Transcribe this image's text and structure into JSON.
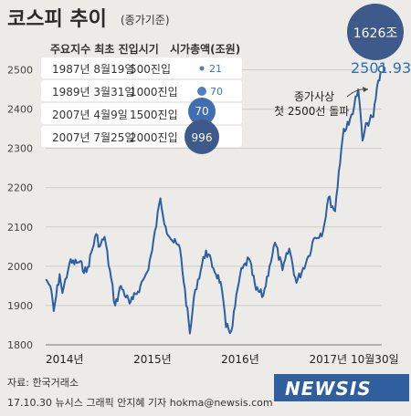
{
  "title": "코스피 추이",
  "subtitle": "(종가기준)",
  "source": "자료: 한국거래소",
  "credit": "17.10.30 뉴시스 그래픽 안지혜 기자 hokma@newsis.com",
  "logo_text": "NEWSIS",
  "colors": {
    "line": "#2c5fa3",
    "bubble_light": "#4f80bf",
    "bubble_dark": "#3d5a8a",
    "accent": "#2d6fb3"
  },
  "top_badge": "1626조",
  "annotation": [
    "종가사상",
    "첫 2500선 돌파"
  ],
  "last_value_label": "2501.93",
  "table": {
    "headers": [
      "주요지수 최초 진입시기",
      "시가총액(조원)"
    ],
    "rows": [
      {
        "date": "1987년 8월19일",
        "level": "500진입",
        "cap": "21"
      },
      {
        "date": "1989년 3월31일",
        "level": "1000진입",
        "cap": "70"
      },
      {
        "date": "2007년 4월9일",
        "level": "1500진입",
        "cap": "70"
      },
      {
        "date": "2007년 7월25일",
        "level": "2000진입",
        "cap": "996"
      }
    ]
  },
  "chart_data": {
    "type": "line",
    "title": "코스피 추이",
    "subtitle": "(종가기준)",
    "ylim": [
      1800,
      2550
    ],
    "y_ticks": [
      1800,
      1900,
      2000,
      2100,
      2200,
      2300,
      2400,
      2500
    ],
    "x_tick_labels": [
      "2014년",
      "2015년",
      "2016년",
      "2017년",
      "10월30일"
    ],
    "x_range": [
      "2014-01-01",
      "2017-10-30"
    ],
    "grid": true,
    "series": [
      {
        "values": [
          [
            "2014-01-02",
            1967
          ],
          [
            "2014-01-20",
            1950
          ],
          [
            "2014-02-04",
            1886
          ],
          [
            "2014-02-28",
            1980
          ],
          [
            "2014-03-12",
            1932
          ],
          [
            "2014-04-10",
            2008
          ],
          [
            "2014-05-20",
            2010
          ],
          [
            "2014-06-20",
            1985
          ],
          [
            "2014-07-30",
            2082
          ],
          [
            "2014-08-14",
            2050
          ],
          [
            "2014-09-03",
            2075
          ],
          [
            "2014-10-17",
            1900
          ],
          [
            "2014-11-10",
            1950
          ],
          [
            "2014-12-16",
            1905
          ],
          [
            "2014-12-30",
            1916
          ],
          [
            "2015-01-30",
            1950
          ],
          [
            "2015-02-27",
            1985
          ],
          [
            "2015-03-20",
            2040
          ],
          [
            "2015-04-23",
            2173
          ],
          [
            "2015-05-15",
            2100
          ],
          [
            "2015-06-12",
            2065
          ],
          [
            "2015-07-14",
            2045
          ],
          [
            "2015-08-24",
            1829
          ],
          [
            "2015-09-15",
            1940
          ],
          [
            "2015-10-30",
            2040
          ],
          [
            "2015-11-30",
            1995
          ],
          [
            "2015-12-30",
            1960
          ],
          [
            "2016-01-21",
            1845
          ],
          [
            "2016-02-12",
            1835
          ],
          [
            "2016-03-20",
            1980
          ],
          [
            "2016-04-25",
            2020
          ],
          [
            "2016-05-25",
            1940
          ],
          [
            "2016-06-24",
            1925
          ],
          [
            "2016-07-20",
            2000
          ],
          [
            "2016-08-12",
            2060
          ],
          [
            "2016-09-12",
            1990
          ],
          [
            "2016-10-10",
            2045
          ],
          [
            "2016-11-09",
            1958
          ],
          [
            "2016-12-29",
            2026
          ],
          [
            "2017-01-20",
            2070
          ],
          [
            "2017-02-28",
            2090
          ],
          [
            "2017-03-22",
            2175
          ],
          [
            "2017-04-19",
            2140
          ],
          [
            "2017-05-04",
            2240
          ],
          [
            "2017-05-25",
            2350
          ],
          [
            "2017-06-15",
            2360
          ],
          [
            "2017-07-24",
            2450
          ],
          [
            "2017-08-11",
            2320
          ],
          [
            "2017-08-30",
            2365
          ],
          [
            "2017-09-25",
            2380
          ],
          [
            "2017-10-10",
            2455
          ],
          [
            "2017-10-30",
            2501.93
          ]
        ]
      }
    ]
  }
}
